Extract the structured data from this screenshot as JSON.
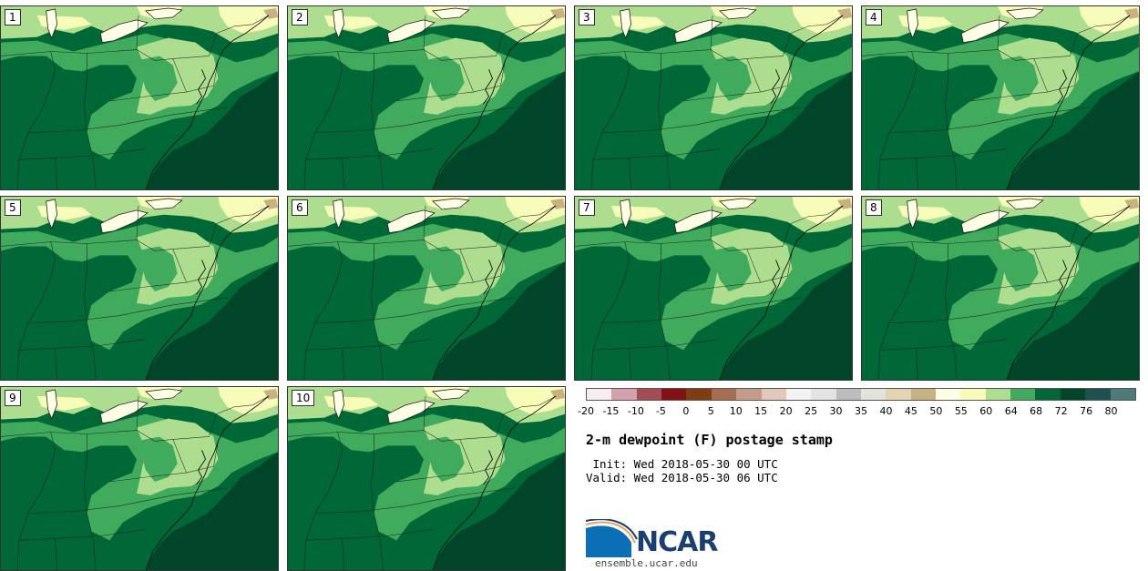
{
  "panels": [
    {
      "label": "1"
    },
    {
      "label": "2"
    },
    {
      "label": "3"
    },
    {
      "label": "4"
    },
    {
      "label": "5"
    },
    {
      "label": "6"
    },
    {
      "label": "7"
    },
    {
      "label": "8"
    },
    {
      "label": "9"
    },
    {
      "label": "10"
    }
  ],
  "colorbar": {
    "colors": [
      "#f7ecef",
      "#d4a0aa",
      "#a44c55",
      "#851016",
      "#803d12",
      "#a66e50",
      "#c49c89",
      "#e2c7bb",
      "#f4f2f2",
      "#e4e2e2",
      "#bdbdbd",
      "#e3e3dc",
      "#e2d3b3",
      "#c9b281",
      "#ffffe5",
      "#f7fcb9",
      "#addd8e",
      "#41ab5d",
      "#006837",
      "#004529",
      "#1e5252",
      "#4e7a7a"
    ],
    "ticks": [
      "-20",
      "-15",
      "-10",
      "-5",
      "0",
      "5",
      "10",
      "15",
      "20",
      "25",
      "30",
      "35",
      "40",
      "45",
      "50",
      "55",
      "60",
      "64",
      "68",
      "72",
      "76",
      "80"
    ]
  },
  "title": "2-m dewpoint (F) postage stamp",
  "init": " Init: Wed 2018-05-30 00 UTC",
  "valid": "Valid: Wed 2018-05-30 06 UTC",
  "logo": {
    "name": "NCAR",
    "colors": {
      "blue": "#0a6fb5",
      "navy": "#1c3f72",
      "orange": "#f0a25b"
    }
  },
  "site": "ensemble.ucar.edu"
}
